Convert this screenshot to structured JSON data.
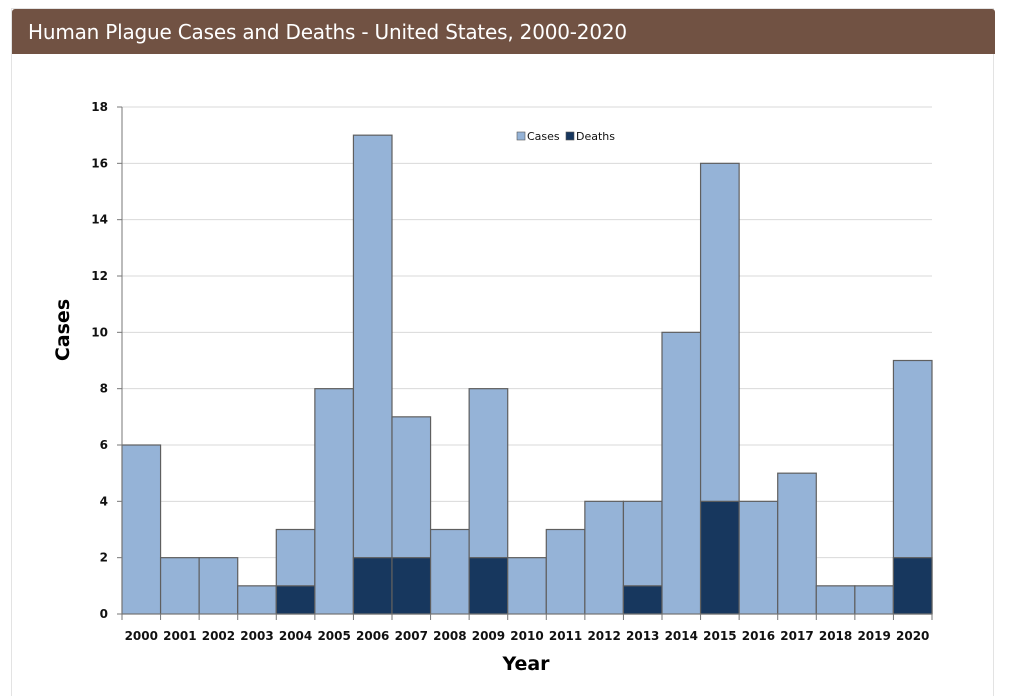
{
  "page": {
    "title": "Human Plague Cases and Deaths - United States, 2000-2020"
  },
  "colors": {
    "header_bg": "#715243",
    "cases_fill": "#95b3d7",
    "deaths_fill": "#17375e",
    "bar_stroke": "#5f5f5f",
    "grid": "#d9d9d9"
  },
  "chart_data": {
    "type": "bar",
    "stacked": "overlay",
    "title": "Human Plague Cases and Deaths - United States, 2000-2020",
    "xlabel": "Year",
    "ylabel": "Cases",
    "ylim": [
      0,
      18
    ],
    "yticks": [
      0,
      2,
      4,
      6,
      8,
      10,
      12,
      14,
      16,
      18
    ],
    "grid": true,
    "legend_position": "top-center",
    "categories": [
      "2000",
      "2001",
      "2002",
      "2003",
      "2004",
      "2005",
      "2006",
      "2007",
      "2008",
      "2009",
      "2010",
      "2011",
      "2012",
      "2013",
      "2014",
      "2015",
      "2016",
      "2017",
      "2018",
      "2019",
      "2020"
    ],
    "series": [
      {
        "name": "Cases",
        "color": "#95b3d7",
        "values": [
          6,
          2,
          2,
          1,
          3,
          8,
          17,
          7,
          3,
          8,
          2,
          3,
          4,
          4,
          10,
          16,
          4,
          5,
          1,
          1,
          9
        ]
      },
      {
        "name": "Deaths",
        "color": "#17375e",
        "values": [
          0,
          0,
          0,
          0,
          1,
          0,
          2,
          2,
          0,
          2,
          0,
          0,
          0,
          1,
          0,
          4,
          0,
          0,
          0,
          0,
          2
        ]
      }
    ]
  }
}
